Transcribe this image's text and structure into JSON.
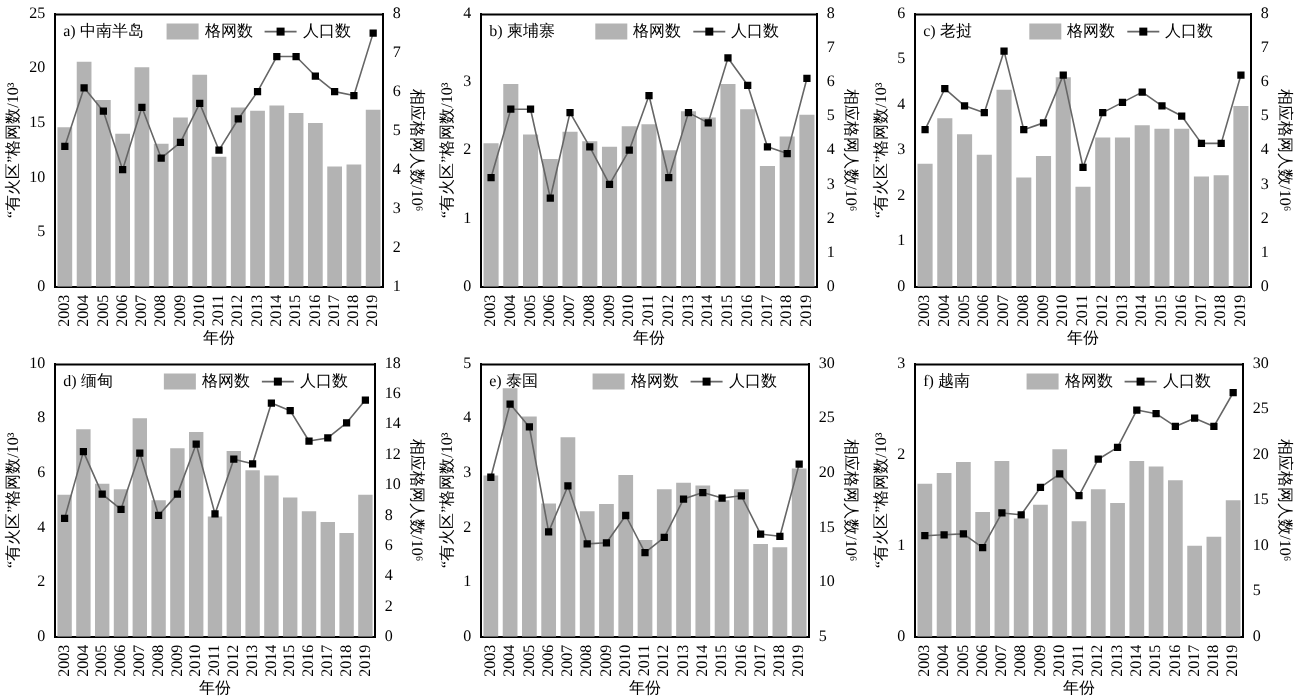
{
  "chart_data": [
    {
      "type": "bar",
      "title": "a) 中南半岛",
      "xlabel": "年份",
      "ylabel": "“有火区”格网数/10³",
      "y2label": "相应格网人数/10⁶",
      "categories": [
        "2003",
        "2004",
        "2005",
        "2006",
        "2007",
        "2008",
        "2009",
        "2010",
        "2011",
        "2012",
        "2013",
        "2014",
        "2015",
        "2016",
        "2017",
        "2018",
        "2019"
      ],
      "ylim": [
        0,
        25
      ],
      "yticks": [
        0,
        5,
        10,
        15,
        20,
        25
      ],
      "y2lim": [
        1,
        8
      ],
      "y2ticks": [
        1,
        2,
        3,
        4,
        5,
        6,
        7,
        8
      ],
      "legend": "top",
      "marker": "square",
      "series": [
        {
          "name": "格网数",
          "color": "#b3b3b3",
          "values": [
            14.6,
            20.6,
            17.1,
            14.0,
            20.1,
            13.1,
            15.5,
            19.4,
            11.9,
            16.4,
            16.1,
            16.6,
            15.9,
            15.0,
            11.0,
            11.2,
            16.2
          ]
        },
        {
          "name": "人口数",
          "type": "line",
          "axis": "y2",
          "color": "#000000",
          "values": [
            4.6,
            6.1,
            5.5,
            4.0,
            5.6,
            4.3,
            4.7,
            5.7,
            4.5,
            5.3,
            6.0,
            6.9,
            6.9,
            6.4,
            6.0,
            5.9,
            7.5
          ]
        }
      ]
    },
    {
      "type": "bar",
      "title": "b) 柬埔寨",
      "xlabel": "年份",
      "ylabel": "“有火区”格网数/10³",
      "y2label": "相应格网人数/10⁶",
      "categories": [
        "2003",
        "2004",
        "2005",
        "2006",
        "2007",
        "2008",
        "2009",
        "2010",
        "2011",
        "2012",
        "2013",
        "2014",
        "2015",
        "2016",
        "2017",
        "2018",
        "2019"
      ],
      "ylim": [
        0,
        4
      ],
      "yticks": [
        0,
        1,
        2,
        3,
        4
      ],
      "y2lim": [
        0,
        8
      ],
      "y2ticks": [
        0,
        1,
        2,
        3,
        4,
        5,
        6,
        7,
        8
      ],
      "legend": "top",
      "marker": "square",
      "series": [
        {
          "name": "格网数",
          "color": "#b3b3b3",
          "values": [
            2.1,
            2.97,
            2.23,
            1.87,
            2.27,
            2.13,
            2.05,
            2.35,
            2.38,
            2.0,
            2.57,
            2.48,
            2.97,
            2.6,
            1.77,
            2.2,
            2.52
          ]
        },
        {
          "name": "人口数",
          "type": "line",
          "axis": "y2",
          "color": "#000000",
          "values": [
            3.2,
            5.2,
            5.2,
            2.6,
            5.1,
            4.1,
            3.0,
            4.0,
            5.6,
            3.2,
            5.1,
            4.8,
            6.7,
            5.9,
            4.1,
            3.9,
            6.1
          ]
        }
      ]
    },
    {
      "type": "bar",
      "title": "c) 老挝",
      "xlabel": "年份",
      "ylabel": "“有火区”格网数/10³",
      "y2label": "相应格网人数/10⁶",
      "categories": [
        "2003",
        "2004",
        "2005",
        "2006",
        "2007",
        "2008",
        "2009",
        "2010",
        "2011",
        "2012",
        "2013",
        "2014",
        "2015",
        "2016",
        "2017",
        "2018",
        "2019"
      ],
      "ylim": [
        0,
        6
      ],
      "yticks": [
        0,
        1,
        2,
        3,
        4,
        5,
        6
      ],
      "y2lim": [
        0,
        8
      ],
      "y2ticks": [
        0,
        1,
        2,
        3,
        4,
        5,
        6,
        7,
        8
      ],
      "legend": "top",
      "marker": "square",
      "series": [
        {
          "name": "格网数",
          "color": "#b3b3b3",
          "values": [
            2.7,
            3.7,
            3.35,
            2.9,
            4.33,
            2.4,
            2.87,
            4.6,
            2.2,
            3.28,
            3.28,
            3.55,
            3.47,
            3.47,
            2.42,
            2.45,
            3.97
          ]
        },
        {
          "name": "人口数",
          "type": "line",
          "axis": "y2",
          "color": "#000000",
          "values": [
            4.6,
            5.8,
            5.3,
            5.1,
            6.9,
            4.6,
            4.8,
            6.2,
            3.5,
            5.1,
            5.4,
            5.7,
            5.3,
            5.0,
            4.2,
            4.2,
            6.2
          ]
        }
      ]
    },
    {
      "type": "bar",
      "title": "d) 缅甸",
      "xlabel": "年份",
      "ylabel": "“有火区”格网数/10³",
      "y2label": "相应格网人数/10⁶",
      "categories": [
        "2003",
        "2004",
        "2005",
        "2006",
        "2007",
        "2008",
        "2009",
        "2010",
        "2011",
        "2012",
        "2013",
        "2014",
        "2015",
        "2016",
        "2017",
        "2018",
        "2019"
      ],
      "ylim": [
        0,
        10
      ],
      "yticks": [
        0,
        2,
        4,
        6,
        8,
        10
      ],
      "y2lim": [
        0,
        18
      ],
      "y2ticks": [
        0,
        2,
        4,
        6,
        8,
        10,
        12,
        14,
        16,
        18
      ],
      "legend": "top",
      "marker": "square",
      "series": [
        {
          "name": "格网数",
          "color": "#b3b3b3",
          "values": [
            5.2,
            7.6,
            5.6,
            5.4,
            8.0,
            5.0,
            6.9,
            7.5,
            4.4,
            6.8,
            6.1,
            5.9,
            5.1,
            4.6,
            4.2,
            3.8,
            5.2
          ]
        },
        {
          "name": "人口数",
          "type": "line",
          "axis": "y2",
          "color": "#000000",
          "values": [
            7.8,
            12.2,
            9.4,
            8.4,
            12.1,
            8.0,
            9.4,
            12.7,
            8.1,
            11.7,
            11.4,
            15.4,
            14.9,
            12.9,
            13.1,
            14.1,
            15.6
          ]
        }
      ]
    },
    {
      "type": "bar",
      "title": "e) 泰国",
      "xlabel": "年份",
      "ylabel": "“有火区”格网数/10³",
      "y2label": "相应格网人数/10⁶",
      "categories": [
        "2003",
        "2004",
        "2005",
        "2006",
        "2007",
        "2008",
        "2009",
        "2010",
        "2011",
        "2012",
        "2013",
        "2014",
        "2015",
        "2016",
        "2017",
        "2018",
        "2019"
      ],
      "ylim": [
        0,
        5
      ],
      "yticks": [
        0,
        1,
        2,
        3,
        4,
        5
      ],
      "y2lim": [
        5,
        30
      ],
      "y2ticks": [
        5,
        10,
        15,
        20,
        25,
        30
      ],
      "legend": "top",
      "marker": "square",
      "series": [
        {
          "name": "格网数",
          "color": "#b3b3b3",
          "values": [
            2.95,
            4.55,
            4.03,
            2.44,
            3.65,
            2.3,
            2.43,
            2.96,
            1.77,
            2.7,
            2.82,
            2.77,
            2.5,
            2.7,
            1.7,
            1.64,
            3.08
          ]
        },
        {
          "name": "人口数",
          "type": "line",
          "axis": "y2",
          "color": "#000000",
          "values": [
            19.6,
            26.3,
            24.2,
            14.6,
            18.8,
            13.5,
            13.6,
            16.1,
            12.7,
            14.1,
            17.6,
            18.2,
            17.7,
            17.9,
            14.4,
            14.2,
            20.8
          ]
        }
      ]
    },
    {
      "type": "bar",
      "title": "f) 越南",
      "xlabel": "年份",
      "ylabel": "“有火区”格网数/10³",
      "y2label": "相应格网人数/10⁶",
      "categories": [
        "2003",
        "2004",
        "2005",
        "2006",
        "2007",
        "2008",
        "2009",
        "2010",
        "2011",
        "2012",
        "2013",
        "2014",
        "2015",
        "2016",
        "2017",
        "2018",
        "2019"
      ],
      "ylim": [
        0,
        3
      ],
      "yticks": [
        0,
        1,
        2,
        3
      ],
      "y2lim": [
        0,
        30
      ],
      "y2ticks": [
        0,
        5,
        10,
        15,
        20,
        25,
        30
      ],
      "legend": "top",
      "marker": "square",
      "series": [
        {
          "name": "格网数",
          "color": "#b3b3b3",
          "values": [
            1.68,
            1.8,
            1.92,
            1.37,
            1.93,
            1.3,
            1.45,
            2.06,
            1.27,
            1.62,
            1.47,
            1.93,
            1.87,
            1.72,
            1.0,
            1.1,
            1.5
          ]
        },
        {
          "name": "人口数",
          "type": "line",
          "axis": "y2",
          "color": "#000000",
          "values": [
            11.1,
            11.2,
            11.3,
            9.8,
            13.6,
            13.4,
            16.4,
            17.9,
            15.5,
            19.5,
            20.8,
            24.9,
            24.5,
            23.1,
            24.0,
            23.1,
            26.8
          ]
        }
      ]
    }
  ]
}
